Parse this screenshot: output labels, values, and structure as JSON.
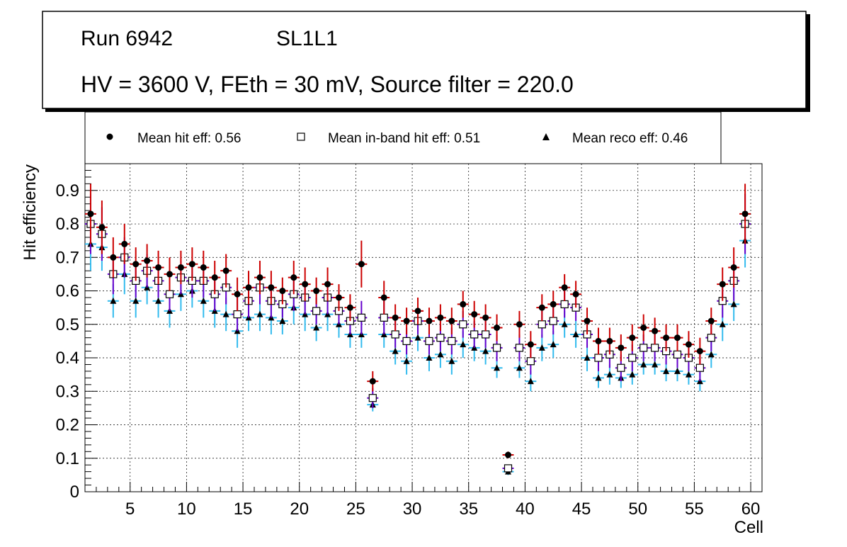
{
  "header": {
    "run": "Run 6942",
    "layer": "SL1L1",
    "conditions": "HV = 3600 V, FEth = 30 mV, Source filter = 220.0"
  },
  "legend": {
    "hit": "Mean hit  eff: 0.56",
    "inband": "Mean in-band hit eff: 0.51",
    "reco": "Mean reco eff: 0.46"
  },
  "colors": {
    "hit_err": "#cc0000",
    "inband_err": "#6600cc",
    "reco_err": "#33bbee",
    "grid": "#000000"
  },
  "chart_data": {
    "type": "scatter",
    "xlabel": "Cell",
    "ylabel": "Hit efficiency",
    "xlim": [
      1,
      61
    ],
    "ylim": [
      0,
      0.98
    ],
    "grid": true,
    "x_ticks": [
      5,
      10,
      15,
      20,
      25,
      30,
      35,
      40,
      45,
      50,
      55,
      60
    ],
    "y_ticks": [
      0,
      0.1,
      0.2,
      0.3,
      0.4,
      0.5,
      0.6,
      0.7,
      0.8,
      0.9
    ],
    "x": [
      1,
      2,
      3,
      4,
      5,
      6,
      7,
      8,
      9,
      10,
      11,
      12,
      13,
      14,
      15,
      16,
      17,
      18,
      19,
      20,
      21,
      22,
      23,
      24,
      25,
      26,
      27,
      28,
      29,
      30,
      31,
      32,
      33,
      34,
      35,
      36,
      37,
      38,
      39,
      40,
      41,
      42,
      43,
      44,
      45,
      46,
      47,
      48,
      49,
      50,
      51,
      52,
      53,
      54,
      55,
      56,
      57,
      58,
      59
    ],
    "series": [
      {
        "name": "Mean hit eff",
        "marker": "circle",
        "values": [
          0.83,
          0.79,
          0.7,
          0.74,
          0.68,
          0.69,
          0.67,
          0.65,
          0.67,
          0.68,
          0.67,
          0.64,
          0.66,
          0.59,
          0.61,
          0.64,
          0.61,
          0.6,
          0.64,
          0.62,
          0.6,
          0.62,
          0.58,
          0.55,
          0.68,
          0.33,
          0.58,
          0.52,
          0.51,
          0.54,
          0.51,
          0.52,
          0.51,
          0.56,
          0.53,
          0.52,
          0.49,
          0.11,
          0.5,
          0.44,
          0.55,
          0.56,
          0.61,
          0.59,
          0.51,
          0.45,
          0.45,
          0.43,
          0.46,
          0.49,
          0.48,
          0.46,
          0.46,
          0.44,
          0.42,
          0.51,
          0.62,
          0.67,
          0.83
        ],
        "errors": [
          0.09,
          0.08,
          0.06,
          0.06,
          0.05,
          0.05,
          0.05,
          0.05,
          0.05,
          0.05,
          0.05,
          0.05,
          0.05,
          0.05,
          0.05,
          0.05,
          0.05,
          0.04,
          0.05,
          0.05,
          0.04,
          0.05,
          0.04,
          0.04,
          0.07,
          0.03,
          0.05,
          0.04,
          0.04,
          0.04,
          0.04,
          0.04,
          0.04,
          0.04,
          0.04,
          0.04,
          0.04,
          0.01,
          0.04,
          0.04,
          0.04,
          0.04,
          0.04,
          0.04,
          0.04,
          0.04,
          0.04,
          0.04,
          0.04,
          0.04,
          0.04,
          0.04,
          0.04,
          0.04,
          0.04,
          0.04,
          0.05,
          0.06,
          0.09
        ]
      },
      {
        "name": "Mean in-band hit eff",
        "marker": "open-square",
        "values": [
          0.8,
          0.77,
          0.65,
          0.7,
          0.63,
          0.66,
          0.63,
          0.59,
          0.64,
          0.63,
          0.63,
          0.59,
          0.61,
          0.53,
          0.57,
          0.61,
          0.57,
          0.56,
          0.59,
          0.58,
          0.54,
          0.58,
          0.54,
          0.51,
          0.52,
          0.28,
          0.52,
          0.47,
          0.45,
          0.51,
          0.45,
          0.46,
          0.45,
          0.5,
          0.47,
          0.47,
          0.43,
          0.07,
          0.43,
          0.39,
          0.5,
          0.51,
          0.56,
          0.55,
          0.47,
          0.4,
          0.41,
          0.37,
          0.4,
          0.43,
          0.43,
          0.42,
          0.41,
          0.4,
          0.37,
          0.46,
          0.57,
          0.63,
          0.8
        ],
        "errors": [
          0.09,
          0.08,
          0.06,
          0.06,
          0.05,
          0.05,
          0.05,
          0.05,
          0.05,
          0.05,
          0.05,
          0.05,
          0.05,
          0.05,
          0.05,
          0.05,
          0.05,
          0.04,
          0.05,
          0.05,
          0.04,
          0.05,
          0.04,
          0.04,
          0.05,
          0.03,
          0.05,
          0.04,
          0.04,
          0.04,
          0.04,
          0.04,
          0.04,
          0.04,
          0.04,
          0.04,
          0.04,
          0.01,
          0.04,
          0.04,
          0.04,
          0.04,
          0.04,
          0.04,
          0.04,
          0.04,
          0.04,
          0.04,
          0.04,
          0.04,
          0.04,
          0.04,
          0.04,
          0.04,
          0.04,
          0.04,
          0.05,
          0.06,
          0.09
        ]
      },
      {
        "name": "Mean reco eff",
        "marker": "triangle",
        "values": [
          0.74,
          0.73,
          0.57,
          0.65,
          0.57,
          0.61,
          0.57,
          0.54,
          0.59,
          0.6,
          0.57,
          0.54,
          0.53,
          0.48,
          0.52,
          0.53,
          0.52,
          0.51,
          0.55,
          0.53,
          0.49,
          0.53,
          0.5,
          0.47,
          0.47,
          0.26,
          0.47,
          0.42,
          0.39,
          0.46,
          0.4,
          0.41,
          0.39,
          0.44,
          0.43,
          0.42,
          0.37,
          0.06,
          0.37,
          0.33,
          0.43,
          0.44,
          0.5,
          0.47,
          0.4,
          0.34,
          0.35,
          0.34,
          0.35,
          0.38,
          0.38,
          0.36,
          0.36,
          0.35,
          0.33,
          0.41,
          0.5,
          0.56,
          0.75
        ],
        "errors": [
          0.08,
          0.07,
          0.05,
          0.06,
          0.05,
          0.05,
          0.05,
          0.05,
          0.05,
          0.05,
          0.05,
          0.05,
          0.05,
          0.05,
          0.04,
          0.05,
          0.05,
          0.04,
          0.05,
          0.05,
          0.04,
          0.05,
          0.04,
          0.04,
          0.04,
          0.02,
          0.04,
          0.04,
          0.04,
          0.04,
          0.04,
          0.04,
          0.04,
          0.04,
          0.04,
          0.04,
          0.03,
          0.01,
          0.03,
          0.03,
          0.04,
          0.04,
          0.04,
          0.04,
          0.04,
          0.03,
          0.03,
          0.03,
          0.03,
          0.03,
          0.03,
          0.03,
          0.03,
          0.03,
          0.03,
          0.04,
          0.05,
          0.05,
          0.08
        ]
      }
    ]
  }
}
